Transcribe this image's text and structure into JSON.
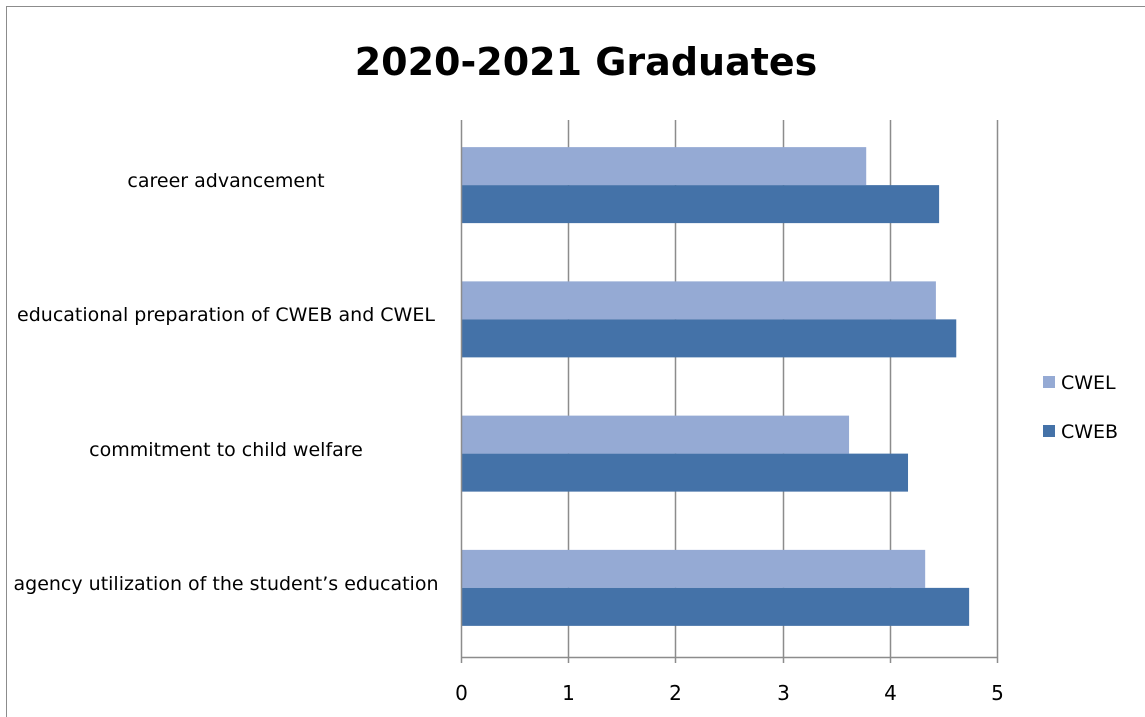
{
  "chart_data": {
    "type": "bar",
    "orientation": "horizontal",
    "title": "2020-2021 Graduates",
    "categories": [
      "career advancement",
      "educational preparation of CWEB and CWEL",
      "commitment to child welfare",
      "agency utilization of the student’s education"
    ],
    "series": [
      {
        "name": "CWEL",
        "color": "#95aad4",
        "values": [
          3.78,
          4.43,
          3.62,
          4.33
        ]
      },
      {
        "name": "CWEB",
        "color": "#4472a8",
        "values": [
          4.46,
          4.62,
          4.17,
          4.74
        ]
      }
    ],
    "xlim": [
      0,
      5
    ],
    "ticks": [
      "0",
      "1",
      "2",
      "3",
      "4",
      "5"
    ],
    "grid": true,
    "legend": "right",
    "legend_order": [
      "CWEL",
      "CWEB"
    ]
  }
}
